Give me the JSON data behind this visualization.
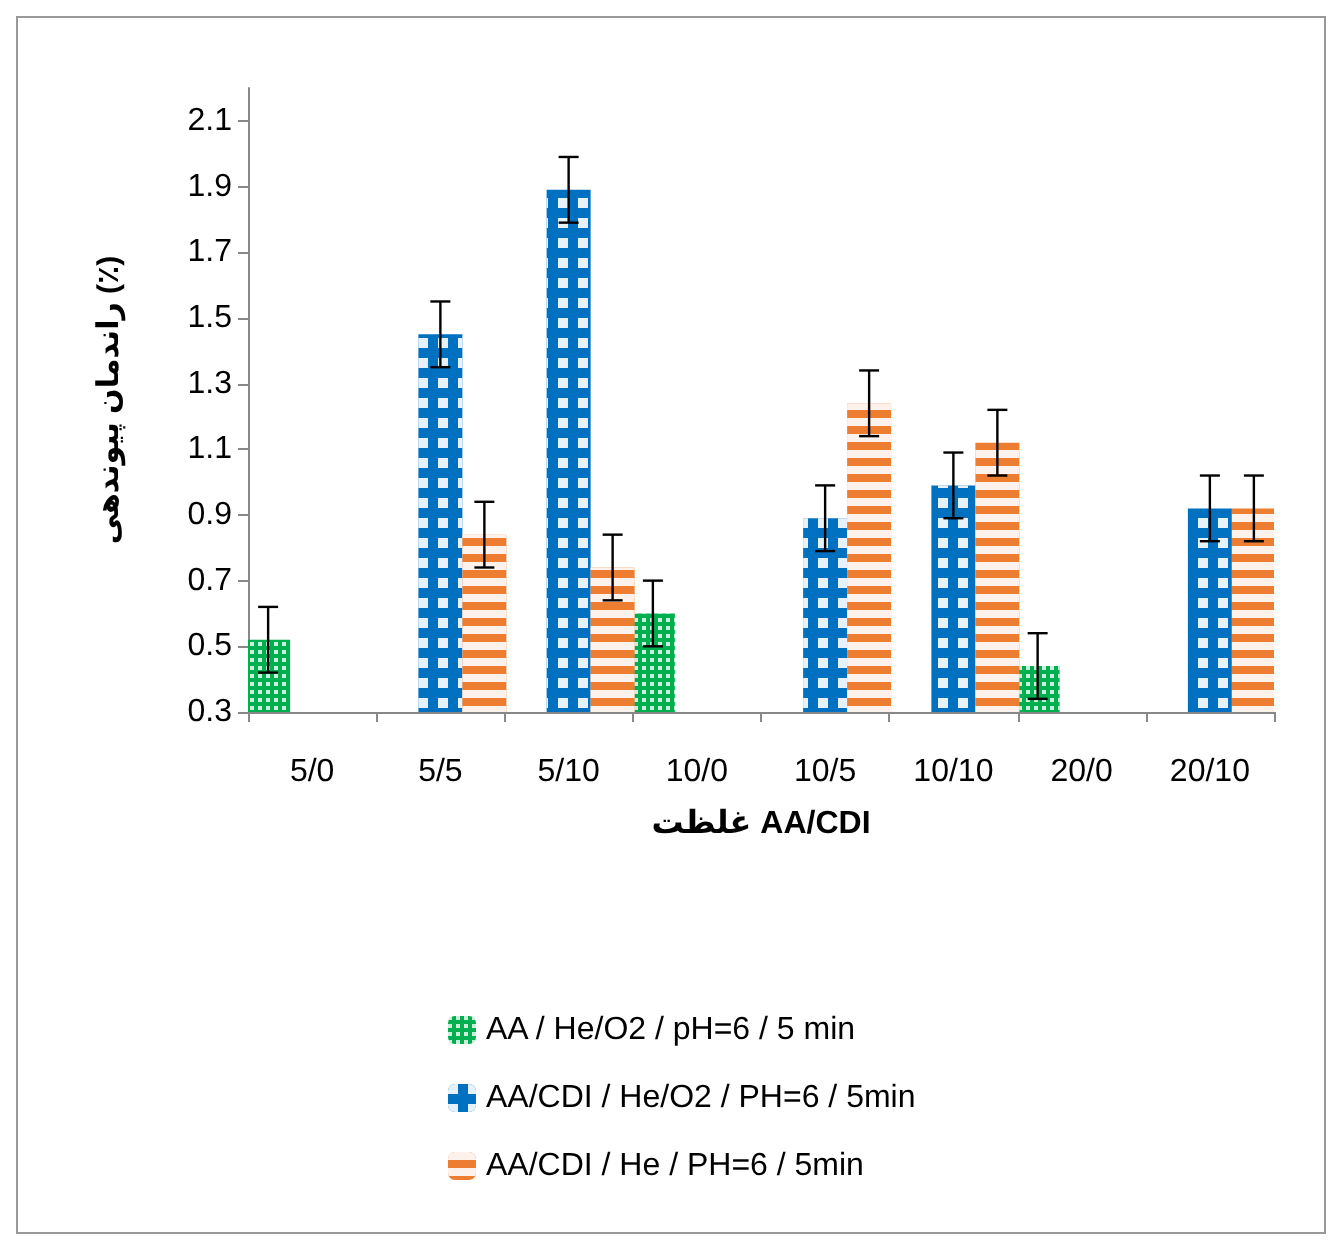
{
  "chart_data": {
    "type": "bar",
    "xlabel": "غلظت AA/CDI",
    "ylabel": "راندمان پیوندهی (٪)",
    "categories": [
      "5/0",
      "5/5",
      "5/10",
      "10/0",
      "10/5",
      "10/10",
      "20/0",
      "20/10"
    ],
    "series": [
      {
        "name": "AA / He/O2 / pH=6 / 5 min",
        "color": "#00b050",
        "values": [
          0.52,
          null,
          null,
          0.6,
          null,
          null,
          0.44,
          null
        ],
        "errors": [
          0.1,
          null,
          null,
          0.1,
          null,
          null,
          0.1,
          null
        ]
      },
      {
        "name": "AA/CDI / He/O2 / PH=6 / 5min",
        "color": "#0070c0",
        "values": [
          null,
          1.45,
          1.89,
          null,
          0.89,
          0.99,
          null,
          0.92
        ],
        "errors": [
          null,
          0.1,
          0.1,
          null,
          0.1,
          0.1,
          null,
          0.1
        ]
      },
      {
        "name": "AA/CDI / He / PH=6 / 5min",
        "color": "#ed7d31",
        "values": [
          null,
          0.84,
          0.74,
          null,
          1.24,
          1.12,
          null,
          0.92
        ],
        "errors": [
          null,
          0.1,
          0.1,
          null,
          0.1,
          0.1,
          null,
          0.1
        ]
      }
    ],
    "ylim": [
      0.3,
      2.2
    ],
    "yticks": [
      0.3,
      0.5,
      0.7,
      0.9,
      1.1,
      1.3,
      1.5,
      1.7,
      1.9,
      2.1
    ],
    "grid": false,
    "legend": "bottom"
  }
}
